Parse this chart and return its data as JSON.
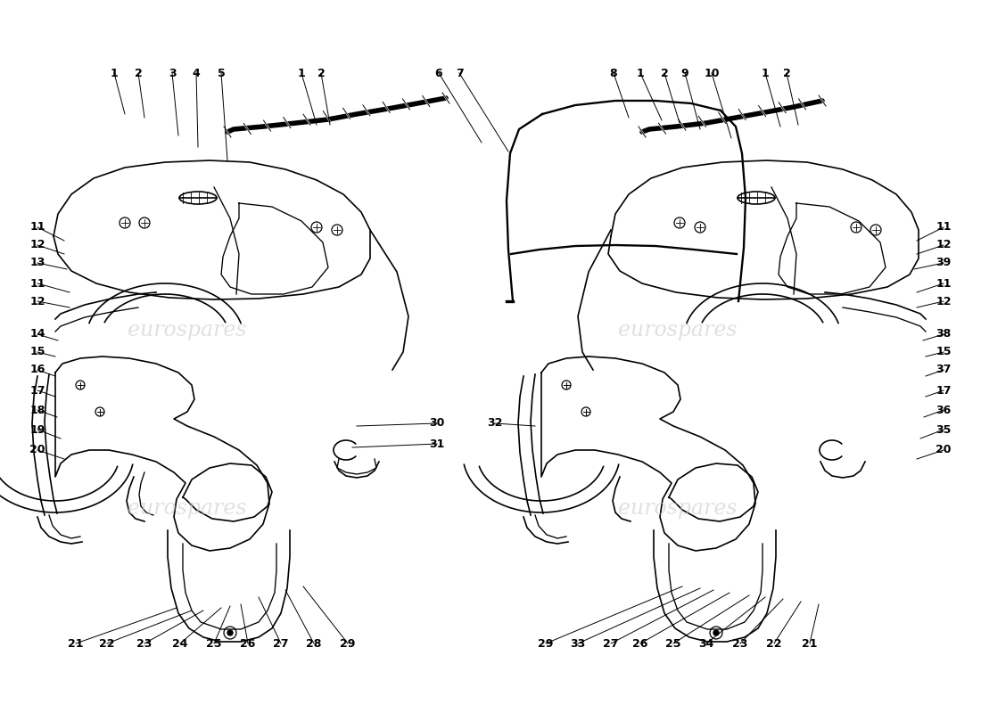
{
  "background_color": "#ffffff",
  "line_color": "#000000",
  "watermark_text": "eurospares",
  "fig_width": 11.0,
  "fig_height": 8.0,
  "dpi": 100
}
